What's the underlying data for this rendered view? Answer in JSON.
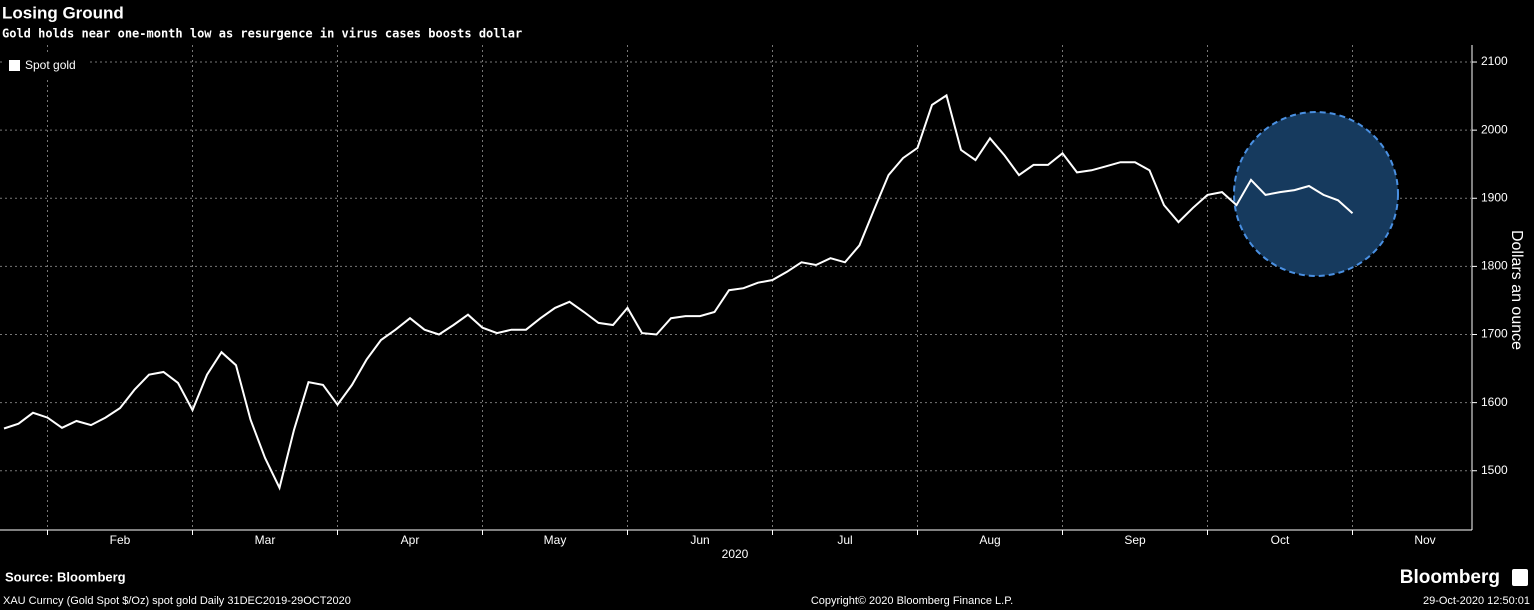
{
  "chart_data": {
    "type": "line",
    "title": "Losing Ground",
    "subtitle": "Gold holds near one-month low as resurgence in virus cases boosts dollar",
    "y_label": "Dollars an ounce",
    "x_label": "2020",
    "categories": [
      null,
      null,
      null,
      null,
      null,
      null,
      null,
      null,
      "Feb",
      null,
      null,
      null,
      null,
      null,
      null,
      null,
      null,
      null,
      "Mar",
      null,
      null,
      null,
      null,
      null,
      null,
      null,
      null,
      null,
      "Apr",
      null,
      null,
      null,
      null,
      null,
      null,
      null,
      null,
      null,
      "May",
      null,
      null,
      null,
      null,
      null,
      null,
      null,
      null,
      null,
      "Jun",
      null,
      null,
      null,
      null,
      null,
      null,
      null,
      null,
      null,
      "Jul",
      null,
      null,
      null,
      null,
      null,
      null,
      null,
      null,
      null,
      "Aug",
      null,
      null,
      null,
      null,
      null,
      null,
      null,
      null,
      null,
      "Sep",
      null,
      null,
      null,
      null,
      null,
      null,
      null,
      null,
      null,
      "Oct",
      null,
      null,
      null,
      null,
      null,
      null,
      null,
      null,
      null,
      "Nov",
      null,
      null
    ],
    "series": [
      {
        "name": "Spot gold",
        "color": "#ffffff",
        "values": [
          1562,
          1569,
          1585,
          1578,
          1563,
          1573,
          1567,
          1578,
          1592,
          1619,
          1641,
          1645,
          1629,
          1589,
          1641,
          1674,
          1655,
          1575,
          1519,
          1475,
          1560,
          1630,
          1626,
          1597,
          1626,
          1663,
          1692,
          1707,
          1724,
          1707,
          1700,
          1714,
          1729,
          1710,
          1702,
          1707,
          1707,
          1724,
          1739,
          1748,
          1733,
          1717,
          1714,
          1739,
          1702,
          1700,
          1724,
          1727,
          1727,
          1733,
          1765,
          1768,
          1776,
          1780,
          1792,
          1806,
          1802,
          1812,
          1806,
          1831,
          1883,
          1934,
          1959,
          1974,
          2037,
          2051,
          1971,
          1956,
          1988,
          1963,
          1934,
          1949,
          1949,
          1966,
          1938,
          1941,
          1947,
          1953,
          1953,
          1941,
          1890,
          1865,
          1886,
          1905,
          1909,
          1890,
          1927,
          1905,
          1909,
          1912,
          1918,
          1905,
          1897,
          1878,
          null,
          null,
          null,
          null,
          null,
          null,
          null
        ]
      }
    ],
    "ylim": [
      1413,
      2125
    ],
    "yticks": [
      1500,
      1600,
      1700,
      1800,
      1900,
      2000,
      2100
    ],
    "grid": true,
    "legend": "top-left",
    "source": "Source: Bloomberg",
    "footnote": "XAU Curncy (Gold Spot  $/Oz) spot gold  Daily 31DEC2019-29OCT2020",
    "copyright": "Copyright© 2020 Bloomberg Finance L.P.",
    "timestamp": "29-Oct-2020 12:50:01",
    "brand": "Bloomberg"
  }
}
